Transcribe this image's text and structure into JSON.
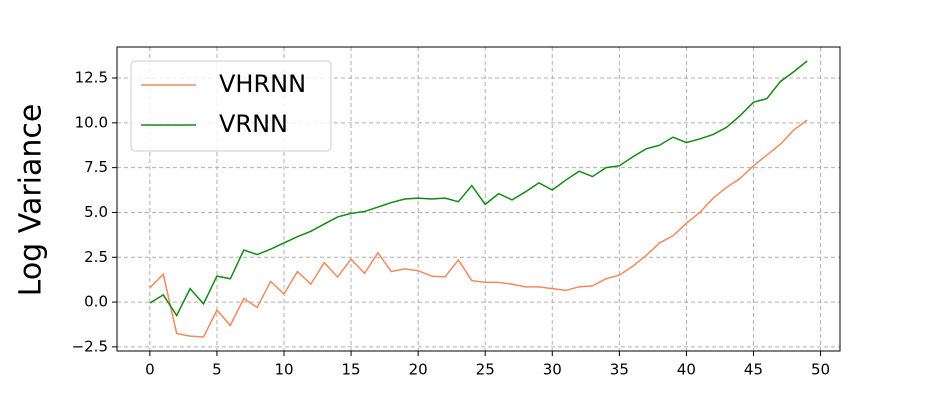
{
  "chart_data": {
    "type": "line",
    "ylabel": "Log Variance",
    "x": [
      0,
      1,
      2,
      3,
      4,
      5,
      6,
      7,
      8,
      9,
      10,
      11,
      12,
      13,
      14,
      15,
      16,
      17,
      18,
      19,
      20,
      21,
      22,
      23,
      24,
      25,
      26,
      27,
      28,
      29,
      30,
      31,
      32,
      33,
      34,
      35,
      36,
      37,
      38,
      39,
      40,
      41,
      42,
      43,
      44,
      45,
      46,
      47,
      48,
      49
    ],
    "series": [
      {
        "name": "VHRNN",
        "color": "#f4895f",
        "values": [
          0.8,
          1.55,
          -1.75,
          -1.9,
          -1.95,
          -0.45,
          -1.3,
          0.2,
          -0.3,
          1.15,
          0.45,
          1.7,
          1.0,
          2.2,
          1.4,
          2.4,
          1.6,
          2.75,
          1.7,
          1.85,
          1.75,
          1.45,
          1.4,
          2.35,
          1.2,
          1.1,
          1.1,
          1.0,
          0.85,
          0.85,
          0.75,
          0.65,
          0.85,
          0.9,
          1.3,
          1.5,
          2.0,
          2.6,
          3.3,
          3.7,
          4.4,
          5.0,
          5.8,
          6.4,
          6.9,
          7.6,
          8.2,
          8.8,
          9.6,
          10.15
        ]
      },
      {
        "name": "VRNN",
        "color": "#138a13",
        "values": [
          -0.05,
          0.4,
          -0.75,
          0.75,
          -0.1,
          1.45,
          1.3,
          2.9,
          2.65,
          2.95,
          3.3,
          3.65,
          3.95,
          4.35,
          4.75,
          4.95,
          5.05,
          5.3,
          5.55,
          5.75,
          5.8,
          5.75,
          5.8,
          5.6,
          6.5,
          5.45,
          6.05,
          5.7,
          6.15,
          6.65,
          6.25,
          6.8,
          7.3,
          7.0,
          7.5,
          7.6,
          8.1,
          8.55,
          8.75,
          9.2,
          8.9,
          9.1,
          9.35,
          9.75,
          10.4,
          11.15,
          11.35,
          12.3,
          12.85,
          13.45
        ]
      }
    ],
    "xlim": [
      -2.45,
      51.45
    ],
    "ylim": [
      -2.73,
      14.23
    ],
    "xticks": [
      0,
      5,
      10,
      15,
      20,
      25,
      30,
      35,
      40,
      45,
      50
    ],
    "yticks": [
      {
        "value": -2.5,
        "label": "−2.5"
      },
      {
        "value": 0,
        "label": "0.0"
      },
      {
        "value": 2.5,
        "label": "2.5"
      },
      {
        "value": 5,
        "label": "5.0"
      },
      {
        "value": 7.5,
        "label": "7.5"
      },
      {
        "value": 10,
        "label": "10.0"
      },
      {
        "value": 12.5,
        "label": "12.5"
      }
    ],
    "grid": true,
    "legend": "upper left"
  }
}
